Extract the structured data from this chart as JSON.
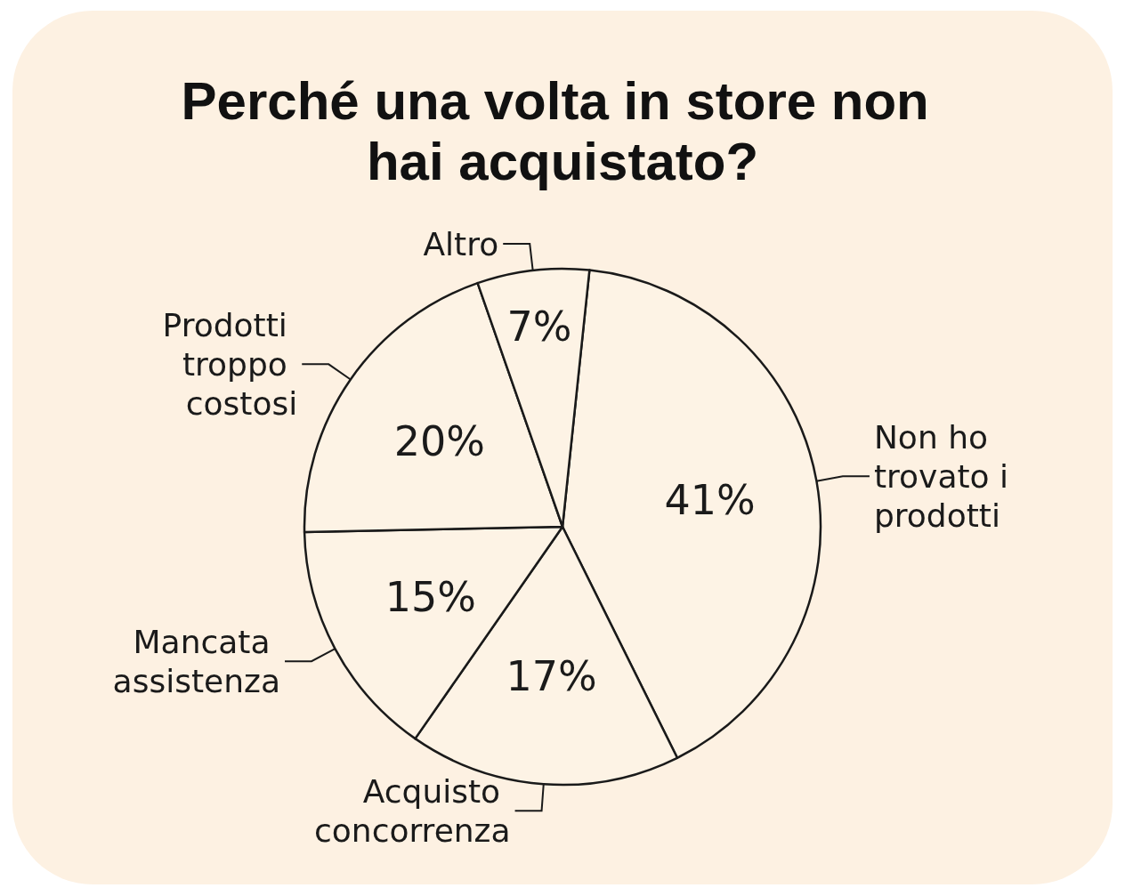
{
  "chart_data": {
    "type": "pie",
    "title": "Perché una volta in store non hai acquistato?",
    "categories": [
      "Non ho trovato i prodotti",
      "Acquisto concorrenza",
      "Mancata assistenza",
      "Prodotti troppo costosi",
      "Altro"
    ],
    "values": [
      41,
      17,
      15,
      20,
      7
    ],
    "value_labels": [
      "41%",
      "17%",
      "15%",
      "20%",
      "7%"
    ],
    "colors": [
      "#fdf3e5",
      "#fdf3e5",
      "#fdf3e5",
      "#fdf3e5",
      "#fdf3e5"
    ],
    "legend": false
  }
}
